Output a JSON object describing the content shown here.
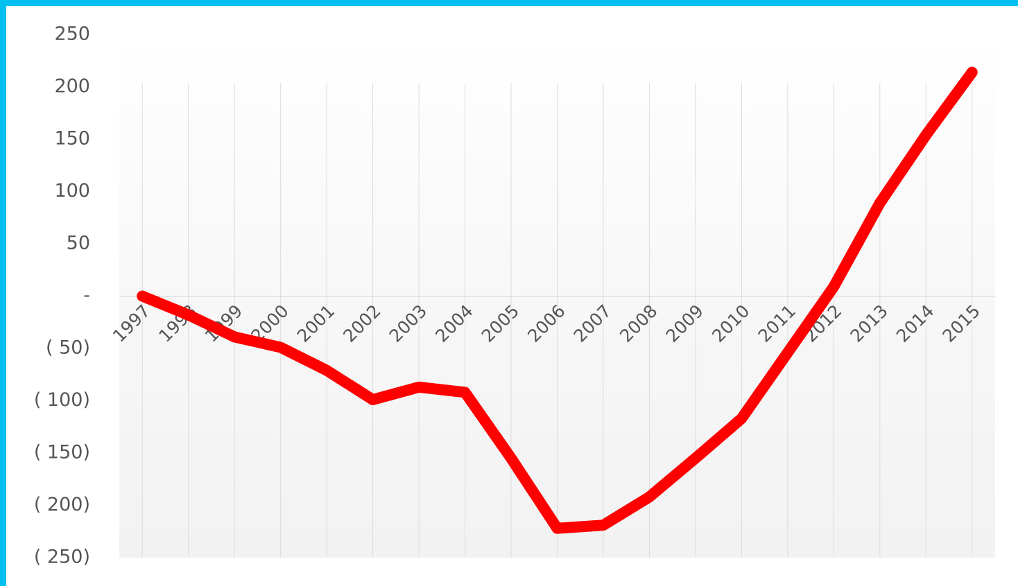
{
  "chart_data": {
    "type": "line",
    "categories": [
      "1997",
      "1998",
      "1999",
      "2000",
      "2001",
      "2002",
      "2003",
      "2004",
      "2005",
      "2006",
      "2007",
      "2008",
      "2009",
      "2010",
      "2011",
      "2012",
      "2013",
      "2014",
      "2015"
    ],
    "series": [
      {
        "color": "#ff0000",
        "values": [
          0,
          -18,
          -39,
          -49,
          -71,
          -99,
          -87,
          -92,
          -155,
          -222,
          -219,
          -192,
          -155,
          -117,
          -54,
          9,
          89,
          154,
          214
        ]
      }
    ],
    "ylim": [
      -250,
      250
    ],
    "yticks": [
      {
        "value": -250,
        "label": "( 250)"
      },
      {
        "value": -200,
        "label": "( 200)"
      },
      {
        "value": -150,
        "label": "( 150)"
      },
      {
        "value": -100,
        "label": "( 100)"
      },
      {
        "value": -50,
        "label": "( 50)"
      },
      {
        "value": 0,
        "label": "-"
      },
      50,
      100,
      150,
      200,
      250
    ],
    "grid": true
  }
}
